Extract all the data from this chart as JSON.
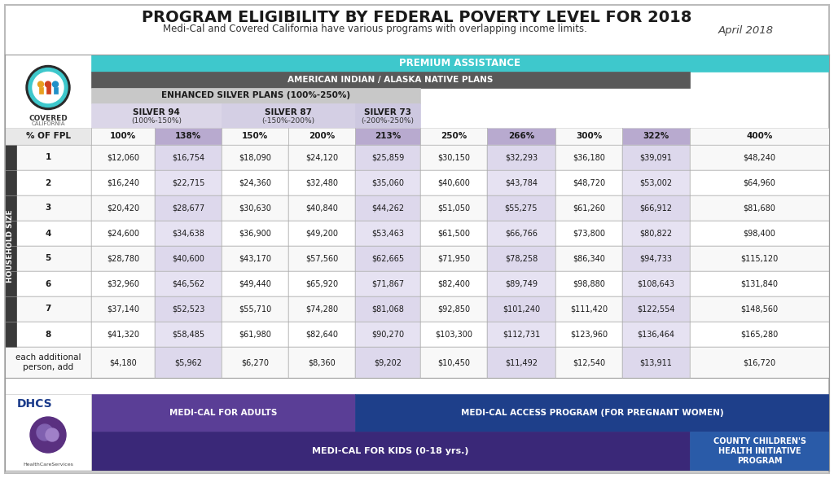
{
  "title": "PROGRAM ELIGIBILITY BY FEDERAL POVERTY LEVEL FOR 2018",
  "subtitle": "Medi-Cal and Covered California have various programs with overlapping income limits.",
  "date": "April 2018",
  "fpl_levels": [
    "% OF FPL",
    "100%",
    "138%",
    "150%",
    "200%",
    "213%",
    "250%",
    "266%",
    "300%",
    "322%",
    "400%"
  ],
  "household_sizes": [
    "1",
    "2",
    "3",
    "4",
    "5",
    "6",
    "7",
    "8",
    "each additional\nperson, add"
  ],
  "table_data": [
    [
      "$12,060",
      "$16,754",
      "$18,090",
      "$24,120",
      "$25,859",
      "$30,150",
      "$32,293",
      "$36,180",
      "$39,091",
      "$48,240"
    ],
    [
      "$16,240",
      "$22,715",
      "$24,360",
      "$32,480",
      "$35,060",
      "$40,600",
      "$43,784",
      "$48,720",
      "$53,002",
      "$64,960"
    ],
    [
      "$20,420",
      "$28,677",
      "$30,630",
      "$40,840",
      "$44,262",
      "$51,050",
      "$55,275",
      "$61,260",
      "$66,912",
      "$81,680"
    ],
    [
      "$24,600",
      "$34,638",
      "$36,900",
      "$49,200",
      "$53,463",
      "$61,500",
      "$66,766",
      "$73,800",
      "$80,822",
      "$98,400"
    ],
    [
      "$28,780",
      "$40,600",
      "$43,170",
      "$57,560",
      "$62,665",
      "$71,950",
      "$78,258",
      "$86,340",
      "$94,733",
      "$115,120"
    ],
    [
      "$32,960",
      "$46,562",
      "$49,440",
      "$65,920",
      "$71,867",
      "$82,400",
      "$89,749",
      "$98,880",
      "$108,643",
      "$131,840"
    ],
    [
      "$37,140",
      "$52,523",
      "$55,710",
      "$74,280",
      "$81,068",
      "$92,850",
      "$101,240",
      "$111,420",
      "$122,554",
      "$148,560"
    ],
    [
      "$41,320",
      "$58,485",
      "$61,980",
      "$82,640",
      "$90,270",
      "$103,300",
      "$112,731",
      "$123,960",
      "$136,464",
      "$165,280"
    ],
    [
      "$4,180",
      "$5,962",
      "$6,270",
      "$8,360",
      "$9,202",
      "$10,450",
      "$11,492",
      "$12,540",
      "$13,911",
      "$16,720"
    ]
  ],
  "teal_color": "#3ec8cc",
  "dark_gray_aian": "#595959",
  "light_gray_enhanced": "#c8c8c8",
  "silver_bg": "#dcdae4",
  "purple_col_header": "#b8aacf",
  "purple_col_data": "#e0d8ee",
  "white": "#ffffff",
  "near_white": "#f4f4f4",
  "dark_sidebar": "#3a3a3a",
  "fpl_header_bg": "#f0f0f0",
  "medi_adults_purple": "#5a3e96",
  "medi_kids_purple": "#3a2878",
  "medi_access_blue": "#1e3f8a",
  "county_children_blue": "#2a5ba8",
  "dhcs_blue": "#1a3a8a",
  "dhcs_purple": "#5a3080"
}
